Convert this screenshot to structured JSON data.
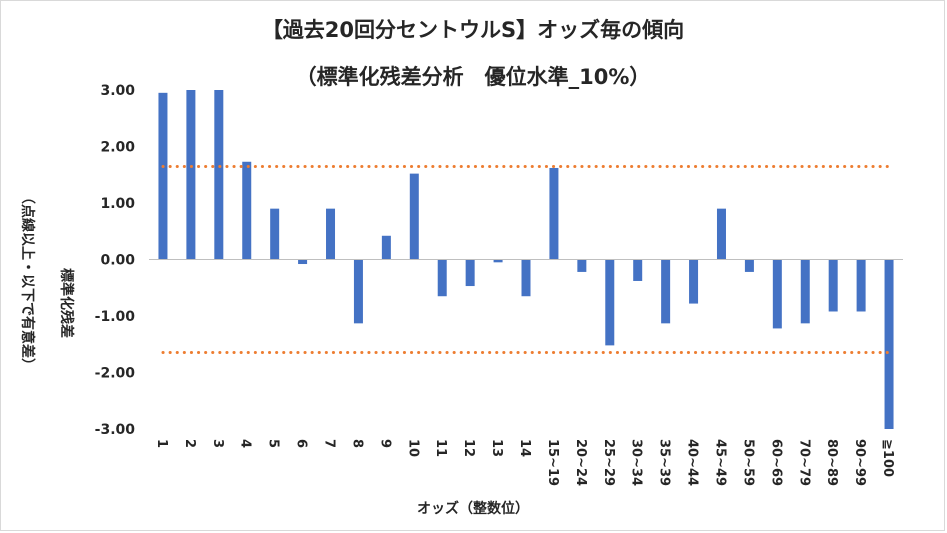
{
  "chart_data": {
    "type": "bar",
    "title": "【過去20回分セントウルS】オッズ毎の傾向",
    "subtitle": "（標準化残差分析　優位水準_10%）",
    "xlabel": "オッズ（整数位）",
    "ylabel": "標準化残差",
    "ylabel_note": "（点線以上・以下で有意差）",
    "categories": [
      "1",
      "2",
      "3",
      "4",
      "5",
      "6",
      "7",
      "8",
      "9",
      "10",
      "11",
      "12",
      "13",
      "14",
      "15~19",
      "20~24",
      "25~29",
      "30~34",
      "35~39",
      "40~44",
      "45~49",
      "50~59",
      "60~69",
      "70~79",
      "80~89",
      "90~99",
      "≧100"
    ],
    "values": [
      2.95,
      3.0,
      3.0,
      1.73,
      0.9,
      -0.08,
      0.9,
      -1.13,
      0.42,
      1.52,
      -0.65,
      -0.47,
      -0.05,
      -0.65,
      1.62,
      -0.22,
      -1.52,
      -0.38,
      -1.13,
      -0.78,
      0.9,
      -0.22,
      -1.22,
      -1.13,
      -0.92,
      -0.92,
      -3.0
    ],
    "ylim": [
      -3.0,
      3.0
    ],
    "yticks": [
      "3.00",
      "2.00",
      "1.00",
      "0.00",
      "-1.00",
      "-2.00",
      "-3.00"
    ],
    "threshold": 1.645,
    "grid": false,
    "legend": "none",
    "colors": {
      "bar": "#4472c4",
      "threshold": "#ed7d31",
      "axis": "#bfbfbf",
      "text": "#262626"
    }
  }
}
